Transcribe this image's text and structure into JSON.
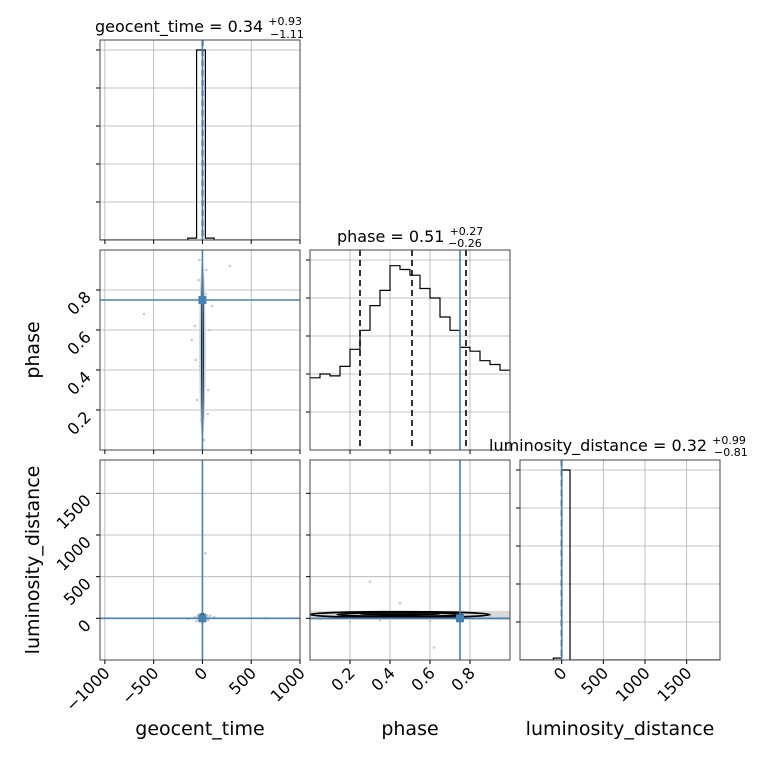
{
  "chart_data": {
    "type": "corner",
    "parameters": [
      "geocent_time",
      "phase",
      "luminosity_distance"
    ],
    "ranges": {
      "geocent_time": [
        -1050,
        1000
      ],
      "phase": [
        0.0,
        1.0
      ],
      "luminosity_distance": [
        -500,
        1900
      ]
    },
    "truths": {
      "geocent_time": 0.0,
      "phase": 0.75,
      "luminosity_distance": 0.0
    },
    "colors": {
      "truth": "#4682b4",
      "hist": "#000000",
      "grid": "#b0b0b0",
      "scatter": "#c8c8c8"
    },
    "titles": [
      {
        "param": "geocent_time",
        "label": "geocent_time = 0.34",
        "plus": "+0.93",
        "minus": "−1.11"
      },
      {
        "param": "phase",
        "label": "phase = 0.51",
        "plus": "+0.27",
        "minus": "−0.26"
      },
      {
        "param": "luminosity_distance",
        "label": "luminosity_distance = 0.32",
        "plus": "+0.99",
        "minus": "−0.81"
      }
    ],
    "axis_labels": {
      "x": [
        "geocent_time",
        "phase",
        "luminosity_distance"
      ],
      "y": [
        "phase",
        "luminosity_distance"
      ]
    },
    "ticks": {
      "geocent_time": {
        "values": [
          -1000,
          -500,
          0,
          500,
          1000
        ],
        "labels": [
          "−1000",
          "−500",
          "0",
          "500",
          "1000"
        ]
      },
      "phase": {
        "values": [
          0.2,
          0.4,
          0.6,
          0.8
        ],
        "labels": [
          "0.2",
          "0.4",
          "0.6",
          "0.8"
        ]
      },
      "luminosity_distance": {
        "values": [
          0,
          500,
          1000,
          1500
        ],
        "labels": [
          "0",
          "500",
          "1000",
          "1500"
        ]
      }
    },
    "hist_geocent_time": {
      "edges": [
        -1050,
        -960,
        -870,
        -780,
        -690,
        -600,
        -510,
        -420,
        -330,
        -240,
        -150,
        -60,
        30,
        120,
        210,
        300,
        390,
        480,
        570,
        660,
        750,
        840,
        930,
        1020
      ],
      "counts": [
        0,
        0,
        0,
        0,
        0,
        0,
        0,
        0,
        0,
        0,
        0.01,
        1.0,
        0.01,
        0,
        0,
        0,
        0,
        0,
        0,
        0,
        0,
        0,
        0
      ],
      "quantiles": [
        -0.77,
        0.34,
        1.27
      ]
    },
    "hist_phase": {
      "edges": [
        0.0,
        0.05,
        0.1,
        0.15,
        0.2,
        0.25,
        0.3,
        0.35,
        0.4,
        0.45,
        0.5,
        0.55,
        0.6,
        0.65,
        0.7,
        0.75,
        0.8,
        0.85,
        0.9,
        0.95,
        1.0
      ],
      "counts": [
        0.38,
        0.4,
        0.39,
        0.44,
        0.53,
        0.63,
        0.76,
        0.84,
        0.97,
        0.95,
        0.92,
        0.85,
        0.8,
        0.7,
        0.63,
        0.54,
        0.52,
        0.47,
        0.45,
        0.42
      ],
      "quantiles": [
        0.25,
        0.51,
        0.78
      ]
    },
    "hist_luminosity_distance": {
      "edges": [
        -500,
        -400,
        -300,
        -200,
        -100,
        0,
        100,
        200,
        300,
        400,
        500,
        600,
        700,
        800,
        900,
        1000,
        1100,
        1200,
        1300,
        1400,
        1500,
        1600,
        1700,
        1800,
        1900
      ],
      "counts": [
        0,
        0,
        0,
        0,
        0.01,
        1.0,
        0,
        0,
        0,
        0,
        0,
        0,
        0,
        0,
        0,
        0,
        0,
        0,
        0,
        0,
        0,
        0,
        0,
        0
      ],
      "quantiles": [
        -0.49,
        0.32,
        1.31
      ]
    },
    "scatter_geocent_phase": {
      "points": [
        [
          -30,
          0.95
        ],
        [
          -40,
          0.85
        ],
        [
          20,
          0.35
        ],
        [
          -70,
          0.45
        ],
        [
          60,
          0.3
        ],
        [
          -15,
          0.15
        ],
        [
          70,
          0.6
        ],
        [
          -80,
          0.62
        ],
        [
          40,
          0.9
        ],
        [
          -55,
          0.25
        ],
        [
          15,
          0.05
        ],
        [
          100,
          0.72
        ],
        [
          -110,
          0.55
        ],
        [
          280,
          0.92
        ],
        [
          -600,
          0.68
        ],
        [
          30,
          0.78
        ],
        [
          -25,
          0.42
        ],
        [
          55,
          0.18
        ]
      ],
      "core_center": [
        0,
        0.5
      ],
      "core_halfwidth": [
        15,
        0.42
      ]
    },
    "scatter_geocent_lumdist": {
      "points": [
        [
          -80,
          10
        ],
        [
          60,
          -20
        ],
        [
          -30,
          40
        ],
        [
          120,
          15
        ],
        [
          -150,
          -5
        ],
        [
          30,
          780
        ],
        [
          0,
          -60
        ],
        [
          80,
          30
        ],
        [
          -60,
          -30
        ],
        [
          650,
          0
        ]
      ],
      "core_center": [
        0,
        20
      ],
      "core_halfwidth": [
        30,
        45
      ]
    },
    "scatter_phase_lumdist": {
      "points": [
        [
          0.3,
          440
        ],
        [
          0.1,
          20
        ],
        [
          0.6,
          -30
        ],
        [
          0.8,
          10
        ],
        [
          0.45,
          180
        ],
        [
          0.2,
          -40
        ],
        [
          0.9,
          30
        ],
        [
          0.55,
          60
        ],
        [
          0.35,
          -20
        ],
        [
          0.7,
          40
        ],
        [
          0.05,
          -10
        ],
        [
          0.95,
          5
        ],
        [
          0.62,
          -350
        ],
        [
          0.4,
          25
        ]
      ],
      "band_range": [
        -20,
        90
      ],
      "contour_center": [
        0.45,
        45
      ],
      "contour_halfwidth": [
        0.45,
        35
      ]
    }
  }
}
